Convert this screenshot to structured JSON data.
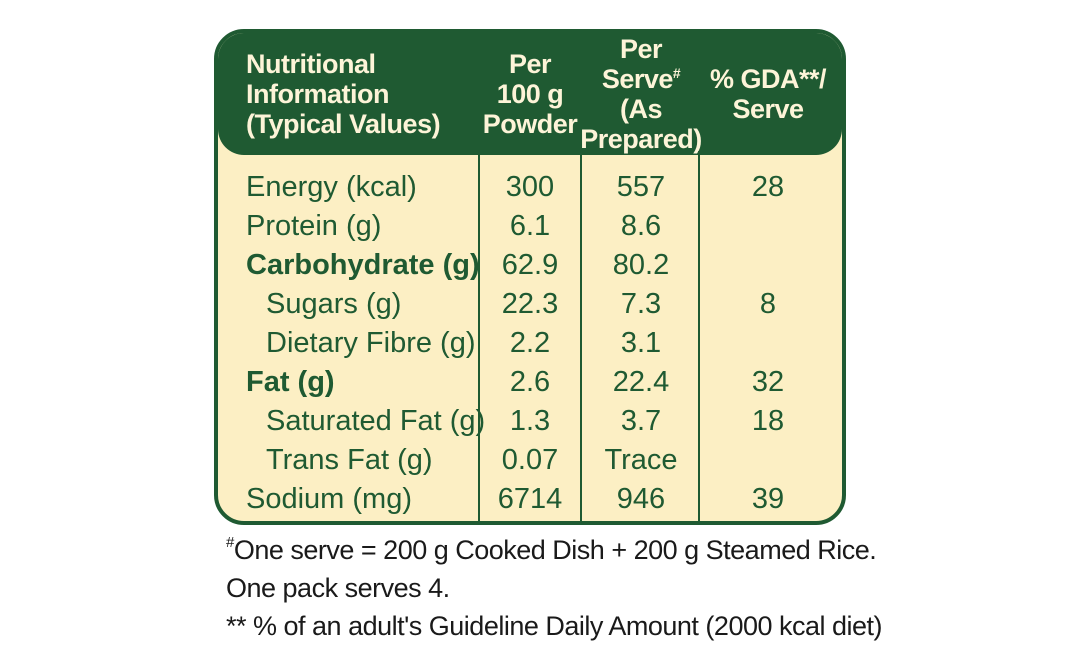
{
  "header": {
    "name_lines": [
      "Nutritional",
      "Information",
      "(Typical Values)"
    ],
    "per100_lines": [
      "Per",
      "100 g",
      "Powder"
    ],
    "serve_lines": [
      "Per",
      "Serve",
      "#",
      "(As",
      "Prepared)"
    ],
    "gda_lines": [
      "% GDA**/",
      "Serve"
    ]
  },
  "rows": [
    {
      "name": "Energy (kcal)",
      "per100": "300",
      "serve": "557",
      "gda": "28"
    },
    {
      "name": "Protein (g)",
      "per100": "6.1",
      "serve": "8.6",
      "gda": ""
    },
    {
      "name": "Carbohydrate (g)",
      "per100": "62.9",
      "serve": "80.2",
      "gda": ""
    },
    {
      "name": "Sugars (g)",
      "per100": "22.3",
      "serve": "7.3",
      "gda": "8"
    },
    {
      "name": "Dietary Fibre (g)",
      "per100": "2.2",
      "serve": "3.1",
      "gda": ""
    },
    {
      "name": "Fat (g)",
      "per100": "2.6",
      "serve": "22.4",
      "gda": "32"
    },
    {
      "name": "Saturated Fat (g)",
      "per100": "1.3",
      "serve": "3.7",
      "gda": "18"
    },
    {
      "name": "Trans Fat (g)",
      "per100": "0.07",
      "serve": "Trace",
      "gda": ""
    },
    {
      "name": "Sodium (mg)",
      "per100": "6714",
      "serve": "946",
      "gda": "39"
    }
  ],
  "footnotes": {
    "mark": "#",
    "line1": "One serve = 200 g Cooked Dish + 200 g Steamed Rice.",
    "line2": "One pack serves 4.",
    "line3": "** % of an adult's Guideline Daily Amount (2000 kcal diet)"
  },
  "colors": {
    "green": "#1f5a32",
    "cream": "#fcefc4"
  }
}
